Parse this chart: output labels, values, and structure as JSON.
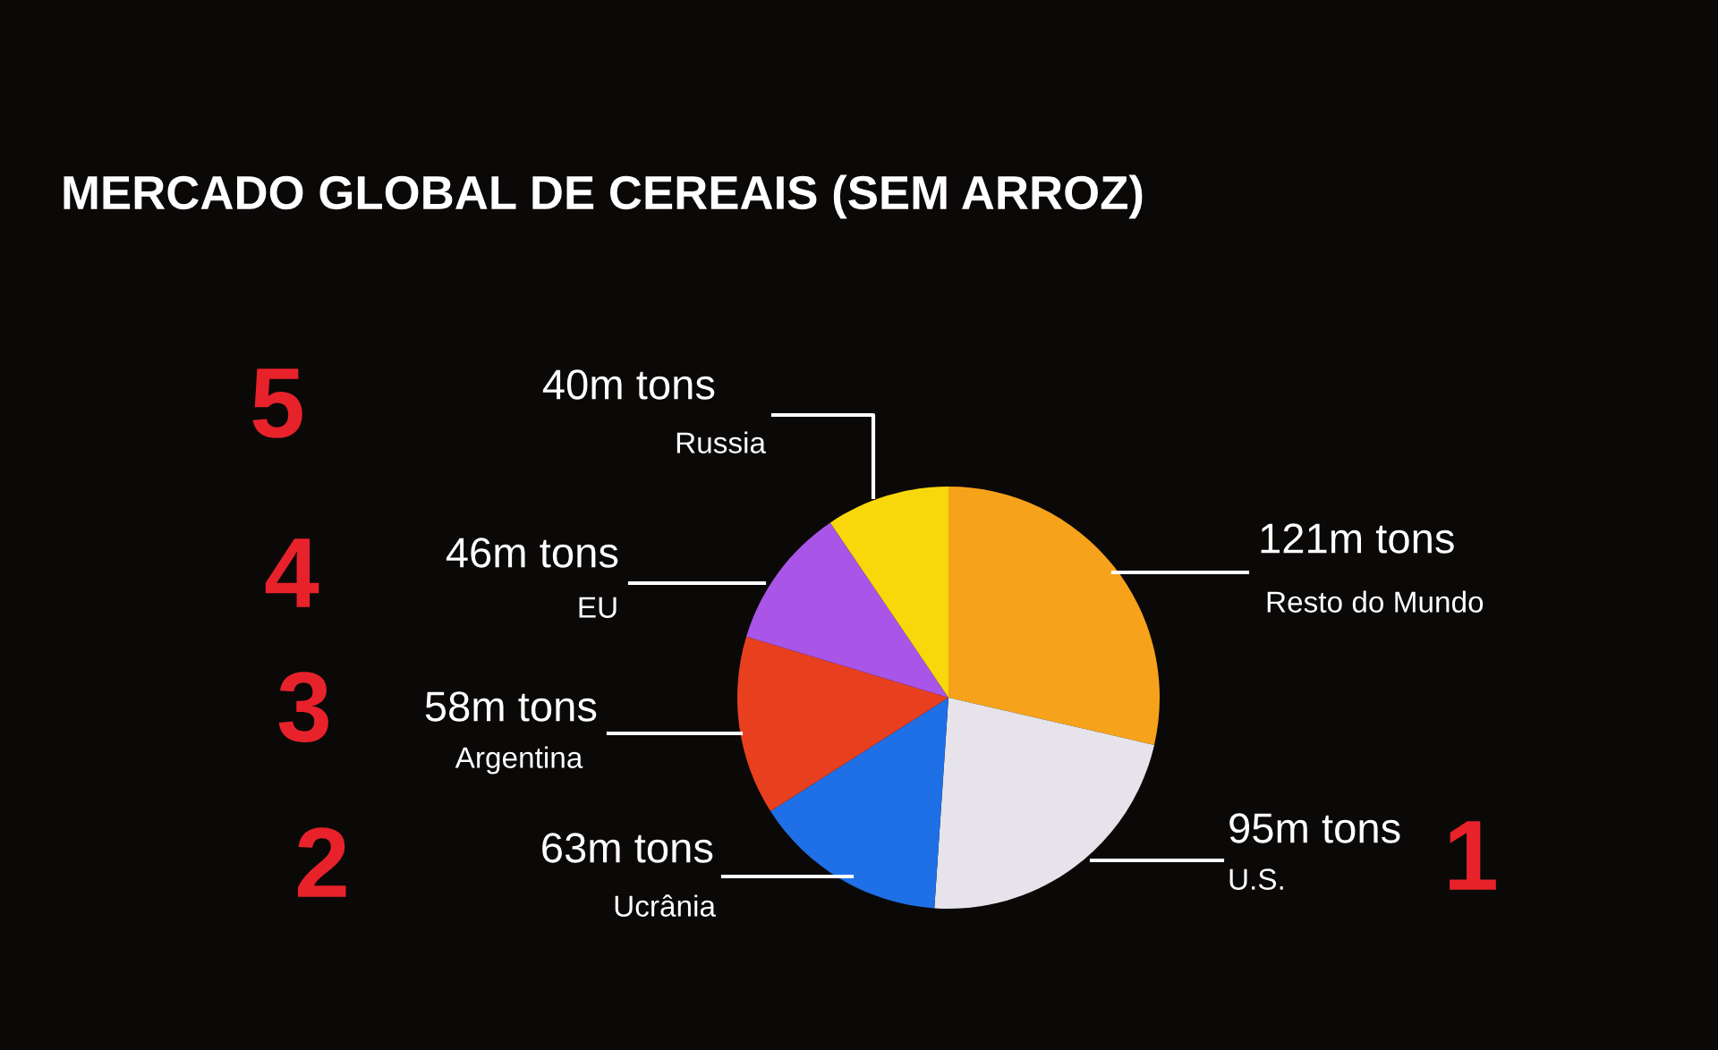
{
  "chart_data": {
    "type": "pie",
    "title": "MERCADO GLOBAL DE CEREAIS (SEM ARROZ)",
    "categories": [
      "Resto do Mundo",
      "U.S.",
      "Ucrânia",
      "Argentina",
      "EU",
      "Russia"
    ],
    "values": [
      121,
      95,
      63,
      58,
      46,
      40
    ],
    "value_labels": [
      "121m tons",
      "95m tons",
      "63m tons",
      "58m tons",
      "46m tons",
      "40m tons"
    ],
    "colors": [
      "#f7a21b",
      "#e6e4ea",
      "#1f6fe6",
      "#e8401f",
      "#a855e8",
      "#f8d80a"
    ],
    "annotations": [
      "1",
      "2",
      "3",
      "4",
      "5"
    ]
  }
}
